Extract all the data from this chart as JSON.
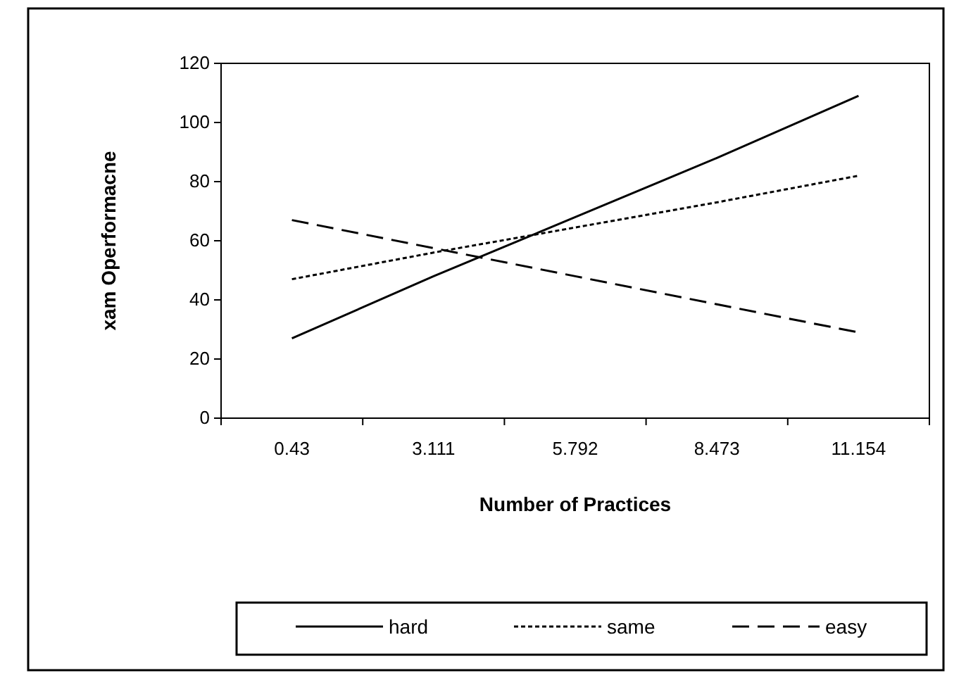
{
  "chart_data": {
    "type": "line",
    "xlabel": "Number of Practices",
    "ylabel": "xam Operformacne",
    "categories": [
      "0.43",
      "3.111",
      "5.792",
      "8.473",
      "11.154"
    ],
    "series": [
      {
        "name": "hard",
        "color": "#000000",
        "line_style": "solid",
        "values": [
          27,
          48,
          68,
          88,
          109
        ]
      },
      {
        "name": "same",
        "color": "#000000",
        "line_style": "dotted",
        "values": [
          47,
          56,
          64.5,
          73,
          82
        ]
      },
      {
        "name": "easy",
        "color": "#000000",
        "line_style": "dashed",
        "values": [
          67,
          57.5,
          48,
          38.5,
          29
        ]
      }
    ],
    "ylim": [
      0,
      120
    ],
    "yticks": [
      0,
      20,
      40,
      60,
      80,
      100,
      120
    ],
    "grid": false,
    "legend": "bottom",
    "marker": "none"
  }
}
